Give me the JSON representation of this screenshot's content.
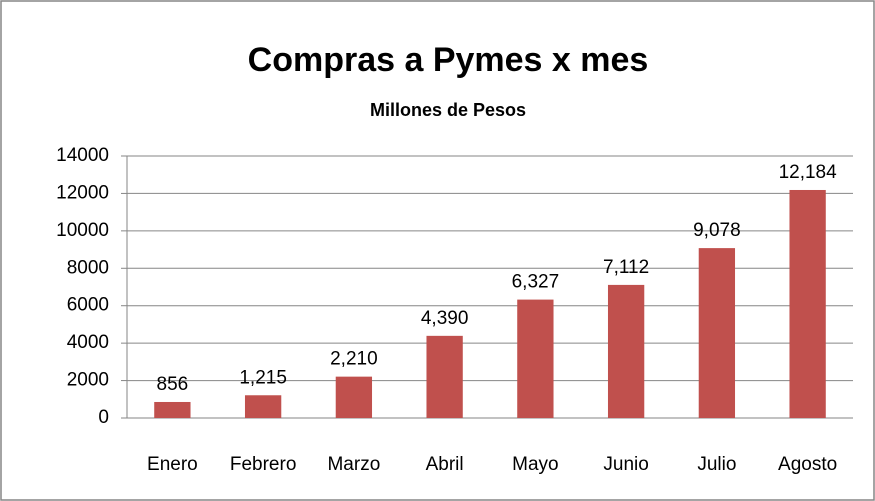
{
  "chart_data": {
    "type": "bar",
    "title": "Compras a Pymes x mes",
    "subtitle": "Millones de Pesos",
    "categories": [
      "Enero",
      "Febrero",
      "Marzo",
      "Abril",
      "Mayo",
      "Junio",
      "Julio",
      "Agosto"
    ],
    "values": [
      856,
      1215,
      2210,
      4390,
      6327,
      7112,
      9078,
      12184
    ],
    "value_labels": [
      "856",
      "1,215",
      "2,210",
      "4,390",
      "6,327",
      "7,112",
      "9,078",
      "12,184"
    ],
    "color": "#c0504d",
    "ylim": [
      0,
      14000
    ],
    "yticks": [
      0,
      2000,
      4000,
      6000,
      8000,
      10000,
      12000,
      14000
    ],
    "grid": true
  }
}
